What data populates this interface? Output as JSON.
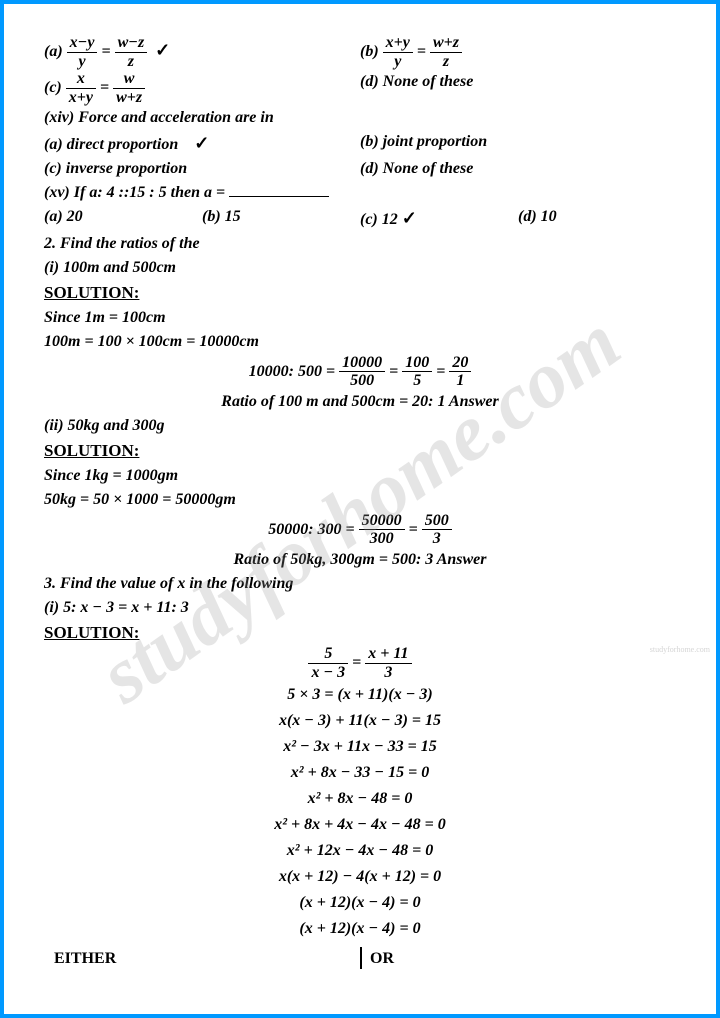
{
  "wm": {
    "main": "studyforhome.com",
    "side": "studyforhome.com"
  },
  "q13": {
    "a": {
      "lbl": "(a)",
      "n1": "x−y",
      "d1": "y",
      "n2": "w−z",
      "d2": "z",
      "ck": "✓"
    },
    "b": {
      "lbl": "(b)",
      "n1": "x+y",
      "d1": "y",
      "n2": "w+z",
      "d2": "z"
    },
    "c": {
      "lbl": "(c)",
      "n1": "x",
      "d1": "x+y",
      "n2": "w",
      "d2": "w+z"
    },
    "d": {
      "lbl": "(d) None of these"
    }
  },
  "q14": {
    "stem": "(xiv) Force and acceleration are in",
    "a": "(a) direct proportion",
    "ack": "✓",
    "b": "(b) joint proportion",
    "c": "(c) inverse proportion",
    "d": "(d) None of these"
  },
  "q15": {
    "stem": "(xv) If a: 4 ::15 : 5 then a =",
    "a": "(a) 20",
    "b": "(b) 15",
    "c": "(c) 12",
    "cck": "✓",
    "d": "(d) 10"
  },
  "q2": {
    "stem": "2. Find the ratios of the",
    "i": "(i) 100m and 500cm",
    "sol": "SOLUTION:",
    "l1": "Since 1m = 100cm",
    "l2": "100m = 100 × 100cm = 10000cm",
    "frac": {
      "lead": "10000: 500 =",
      "n1": "10000",
      "d1": "500",
      "n2": "100",
      "d2": "5",
      "n3": "20",
      "d3": "1"
    },
    "ans": "Ratio of 100 m and 500cm = 20: 1  Answer",
    "ii": "(ii) 50kg and 300g",
    "l3": "Since 1kg = 1000gm",
    "l4": "50kg = 50 × 1000 = 50000gm",
    "frac2": {
      "lead": "50000: 300 =",
      "n1": "50000",
      "d1": "300",
      "n2": "500",
      "d2": "3"
    },
    "ans2": "Ratio of 50kg, 300gm = 500: 3  Answer"
  },
  "q3": {
    "stem": "3. Find the value of x in the following",
    "i": "(i) 5: x − 3  =  x  +  11: 3",
    "sol": "SOLUTION:",
    "frac": {
      "n1": "5",
      "d1": "x − 3",
      "n2": "x + 11",
      "d2": "3"
    },
    "lines": [
      "5 × 3  = (x + 11)(x − 3)",
      "x(x − 3) + 11(x − 3) = 15",
      "x² − 3x + 11x − 33 = 15",
      "x² + 8x − 33 − 15 = 0",
      "x² + 8x − 48 = 0",
      "x² + 8x + 4x − 4x − 48 = 0",
      "x² + 12x − 4x − 48 = 0",
      "x(x + 12) − 4(x + 12) = 0",
      "(x + 12)(x − 4) = 0",
      "(x + 12)(x − 4) = 0"
    ]
  },
  "foot": {
    "either": "EITHER",
    "or": "OR"
  }
}
